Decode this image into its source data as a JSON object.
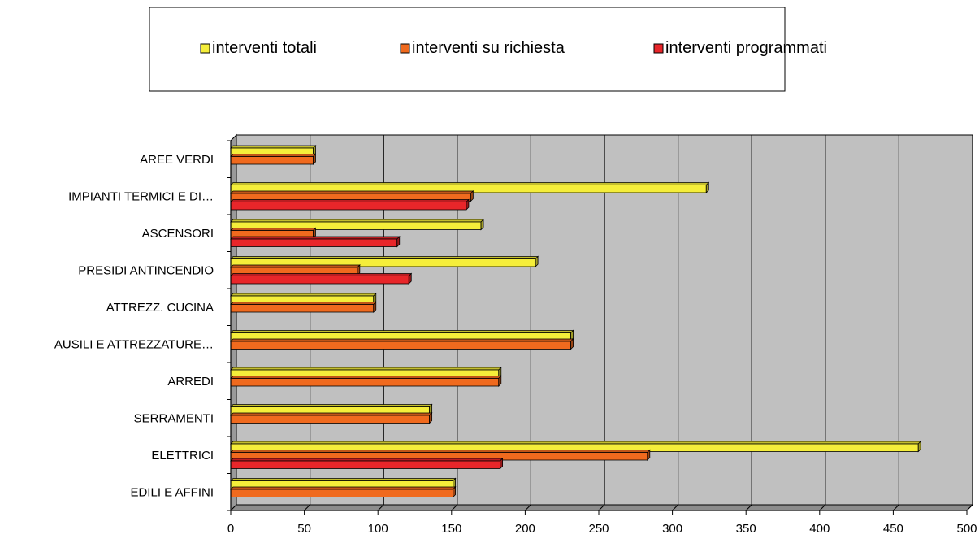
{
  "chart_data": {
    "type": "bar",
    "orientation": "horizontal",
    "style": "3d",
    "categories": [
      "EDILI E AFFINI",
      "ELETTRICI",
      "SERRAMENTI",
      "ARREDI",
      "AUSILI E ATTREZZATURE…",
      "ATTREZZ. CUCINA",
      "PRESIDI ANTINCENDIO",
      "ASCENSORI",
      "IMPIANTI TERMICI E DI…",
      "AREE VERDI"
    ],
    "series": [
      {
        "name": "interventi totali",
        "color": "#f5ee3a",
        "values": [
          151,
          467,
          135,
          182,
          231,
          97,
          207,
          170,
          323,
          56
        ]
      },
      {
        "name": "interventi su richiesta",
        "color": "#f06a1e",
        "values": [
          151,
          283,
          135,
          182,
          231,
          97,
          86,
          56,
          163,
          56
        ]
      },
      {
        "name": "interventi programmati",
        "color": "#e8262a",
        "values": [
          0,
          183,
          0,
          0,
          0,
          0,
          121,
          113,
          160,
          0
        ]
      }
    ],
    "xlim": [
      0,
      500
    ],
    "xticks": [
      "0",
      "50",
      "100",
      "150",
      "200",
      "250",
      "300",
      "350",
      "400",
      "450",
      "500"
    ],
    "grid": true,
    "legend_position": "top",
    "title": "",
    "xlabel": "",
    "ylabel": ""
  }
}
